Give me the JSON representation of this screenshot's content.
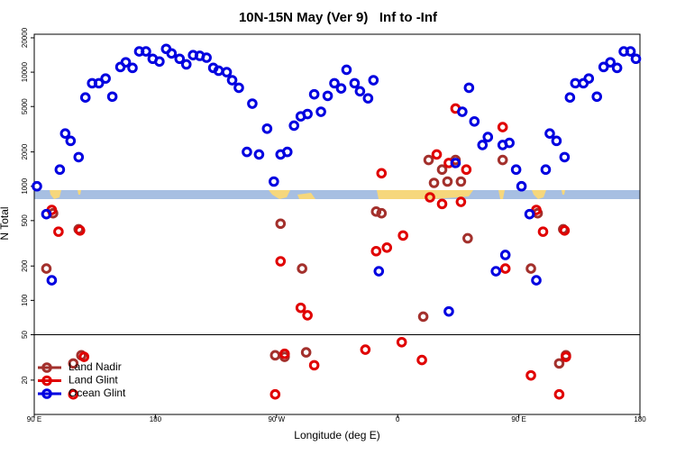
{
  "chart_data": {
    "type": "scatter",
    "title": "10N-15N May (Ver 9)   Inf to -Inf",
    "xlabel": "Longitude (deg E)",
    "ylabel": "N Total",
    "xlim": [
      90,
      540
    ],
    "xticks": [
      {
        "value": 90,
        "label": "90 E"
      },
      180,
      {
        "value": 270,
        "label": "90 W"
      },
      {
        "value": 360,
        "label": "0"
      },
      {
        "value": 450,
        "label": "90 E"
      },
      {
        "value": 540,
        "label": "180"
      }
    ],
    "ylim": [
      10,
      21500
    ],
    "yscale": "log",
    "yticks": [
      20,
      50,
      100,
      200,
      500,
      1000,
      2000,
      5000,
      10000,
      20000
    ],
    "hline": 50,
    "legend": "lower left",
    "series": [
      {
        "name": "Land Nadir",
        "color": "#a3302c",
        "x": [
          99,
          104,
          123,
          273,
          289,
          344,
          348,
          379,
          383,
          393,
          397,
          403,
          407,
          412,
          438,
          459,
          464,
          483,
          119,
          125,
          269,
          276,
          292,
          480,
          485,
          387
        ],
        "values": [
          190,
          580,
          420,
          470,
          190,
          600,
          580,
          72,
          1700,
          1400,
          1100,
          1700,
          1100,
          350,
          1700,
          190,
          580,
          420,
          28,
          33,
          33,
          32,
          35,
          28,
          33,
          1070
        ]
      },
      {
        "name": "Land Glint",
        "color": "#e00000",
        "x": [
          103,
          108,
          124,
          273,
          288,
          293,
          348,
          344,
          352,
          364,
          384,
          389,
          393,
          398,
          403,
          407,
          411,
          438,
          440,
          463,
          468,
          484,
          119,
          127,
          269,
          276,
          298,
          336,
          363,
          378,
          459,
          480,
          485
        ],
        "values": [
          620,
          400,
          410,
          220,
          86,
          74,
          1300,
          270,
          290,
          370,
          800,
          1900,
          700,
          1600,
          4800,
          730,
          1400,
          3300,
          190,
          620,
          400,
          410,
          15,
          32,
          15,
          34,
          27,
          37,
          43,
          30,
          22,
          15,
          32
        ]
      },
      {
        "name": "Ocean Glint",
        "color": "#0000e0",
        "x": [
          92,
          99,
          103,
          109,
          113,
          117,
          123,
          128,
          133,
          138,
          143,
          148,
          154,
          158,
          163,
          168,
          173,
          178,
          183,
          188,
          192,
          198,
          203,
          208,
          213,
          218,
          223,
          227,
          233,
          237,
          242,
          252,
          248,
          257,
          263,
          268,
          273,
          278,
          283,
          288,
          293,
          298,
          303,
          308,
          313,
          318,
          322,
          328,
          332,
          338,
          342,
          346,
          398,
          403,
          408,
          413,
          417,
          423,
          427,
          433,
          438,
          443,
          448,
          452,
          458,
          463,
          470,
          473,
          478,
          484,
          488,
          492,
          498,
          502,
          508,
          513,
          518,
          523,
          528,
          533,
          537,
          440
        ],
        "values": [
          1000,
          570,
          150,
          1400,
          2900,
          2500,
          1800,
          6000,
          8000,
          8000,
          8800,
          6100,
          11100,
          12200,
          10900,
          15200,
          15200,
          13100,
          12400,
          16000,
          14600,
          13100,
          11700,
          14100,
          13900,
          13400,
          10900,
          10300,
          10000,
          8500,
          7300,
          5300,
          2000,
          1900,
          3200,
          1100,
          1900,
          2000,
          3400,
          4100,
          4300,
          6400,
          4500,
          6200,
          8000,
          7200,
          10500,
          8000,
          6800,
          5900,
          8500,
          180,
          80,
          1600,
          4500,
          7300,
          3700,
          2300,
          2700,
          180,
          2300,
          2400,
          1400,
          1000,
          570,
          150,
          1400,
          2900,
          2500,
          1800,
          6000,
          8000,
          8000,
          8800,
          6100,
          11100,
          12200,
          10900,
          15200,
          15200,
          13100,
          250
        ]
      }
    ]
  }
}
